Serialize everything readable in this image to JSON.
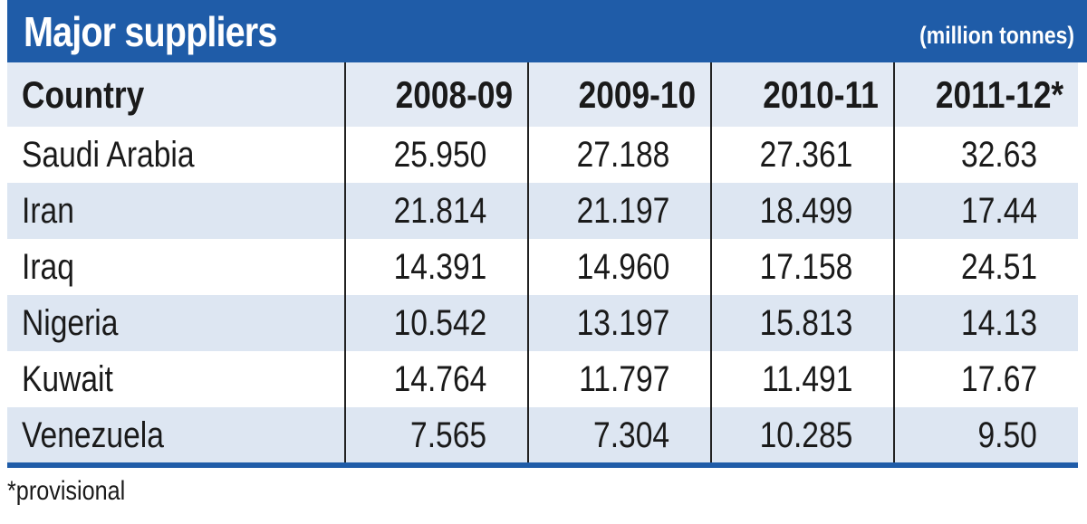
{
  "chart_data": {
    "type": "table",
    "title": "Major suppliers",
    "unit": "(million tonnes)",
    "columns": [
      "Country",
      "2008-09",
      "2009-10",
      "2010-11",
      "2011-12*"
    ],
    "rows": [
      [
        "Saudi Arabia",
        "25.950",
        "27.188",
        "27.361",
        "32.63"
      ],
      [
        "Iran",
        "21.814",
        "21.197",
        "18.499",
        "17.44"
      ],
      [
        "Iraq",
        "14.391",
        "14.960",
        "17.158",
        "24.51"
      ],
      [
        "Nigeria",
        "10.542",
        "13.197",
        "15.813",
        "14.13"
      ],
      [
        "Kuwait",
        "14.764",
        "11.797",
        "11.491",
        "17.67"
      ],
      [
        "Venezuela",
        "7.565",
        "7.304",
        "10.285",
        "9.50"
      ]
    ],
    "footnote": "*provisional"
  },
  "colors": {
    "header_bg": "#1f5ca8",
    "shaded_row": "#dde6f2",
    "text": "#1a1a1a"
  }
}
